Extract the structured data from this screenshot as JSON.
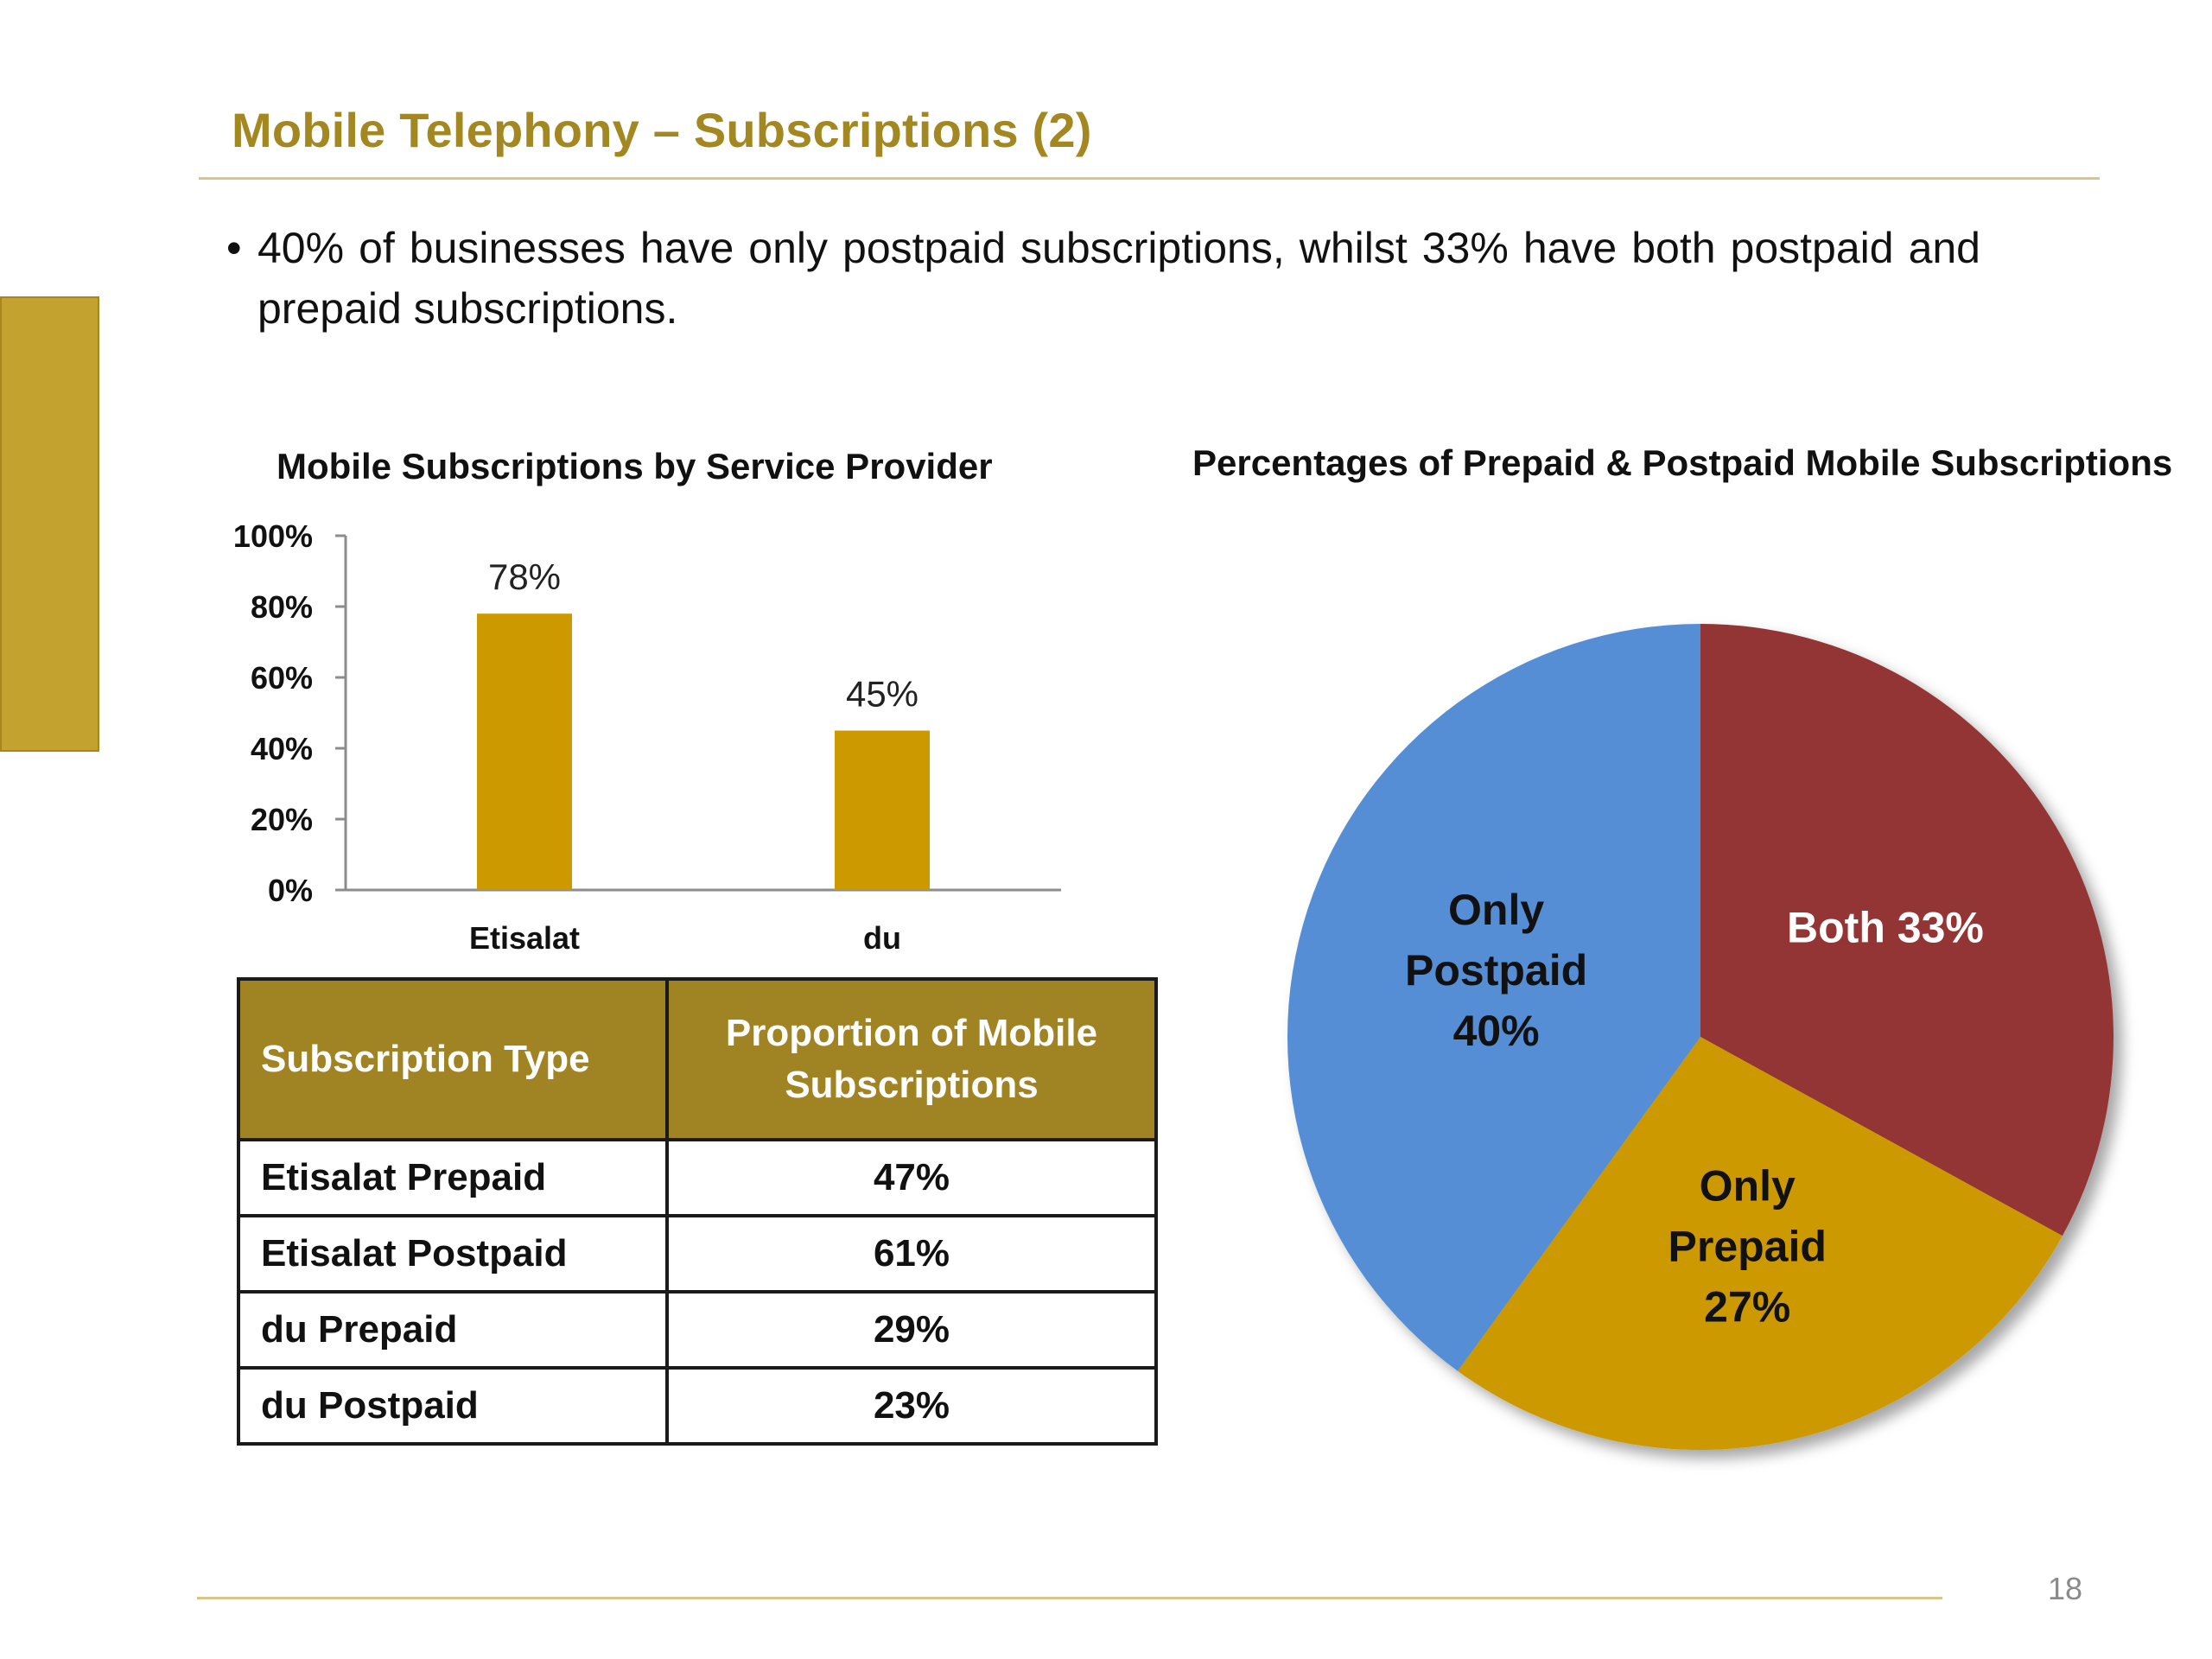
{
  "page": {
    "title": "Mobile Telephony – Subscriptions (2)",
    "bullet_marker": "•",
    "bullet_text": "40% of businesses have only postpaid subscriptions, whilst 33% have both postpaid and prepaid subscriptions.",
    "page_number": "18"
  },
  "chart_data": [
    {
      "type": "bar",
      "title": "Mobile Subscriptions by Service Provider",
      "categories": [
        "Etisalat",
        "du"
      ],
      "values": [
        78,
        45
      ],
      "value_labels": [
        "78%",
        "45%"
      ],
      "yticks": [
        "0%",
        "20%",
        "40%",
        "60%",
        "80%",
        "100%"
      ],
      "ylim": [
        0,
        100
      ],
      "xlabel": "",
      "ylabel": "",
      "bar_color": "#cc9900",
      "grid": false
    },
    {
      "type": "pie",
      "title": "Percentages of Prepaid & Postpaid Mobile Subscriptions",
      "slices": [
        {
          "label_lines": [
            "Both 33%"
          ],
          "value": 33,
          "color": "#943634",
          "text_color": "#ffffff"
        },
        {
          "label_lines": [
            "Only",
            "Prepaid",
            "27%"
          ],
          "value": 27,
          "color": "#cc9900",
          "text_color": "#111111"
        },
        {
          "label_lines": [
            "Only",
            "Postpaid",
            "40%"
          ],
          "value": 40,
          "color": "#558ed5",
          "text_color": "#111111"
        }
      ]
    }
  ],
  "table": {
    "headers": [
      "Subscription Type",
      "Proportion of Mobile Subscriptions"
    ],
    "rows": [
      [
        "Etisalat Prepaid",
        "47%"
      ],
      [
        "Etisalat Postpaid",
        "61%"
      ],
      [
        "du Prepaid",
        "29%"
      ],
      [
        "du Postpaid",
        "23%"
      ]
    ]
  }
}
